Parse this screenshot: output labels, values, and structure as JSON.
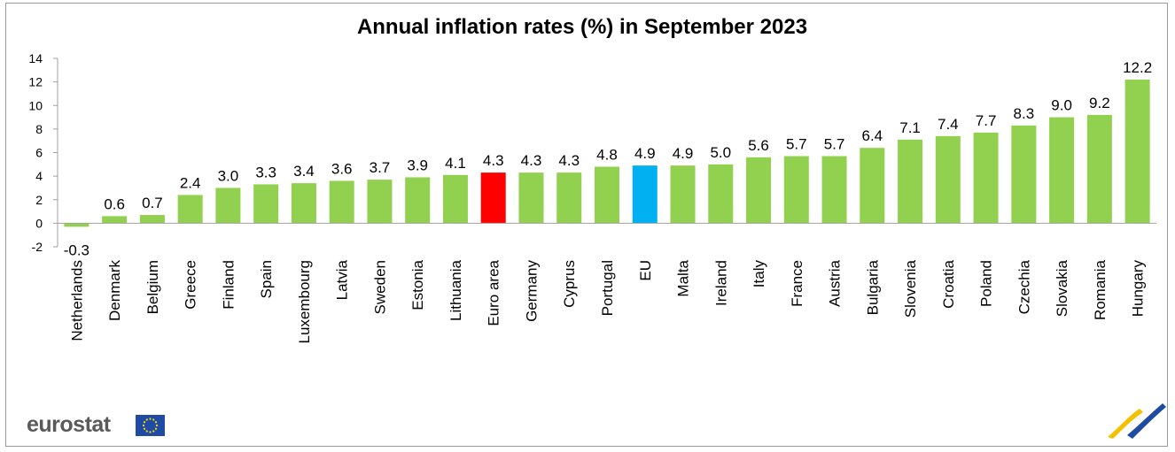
{
  "logo": {
    "text": "eurostat"
  },
  "colors": {
    "default_bar": "#92d050",
    "euro_area_bar": "#ff0000",
    "eu_bar": "#00b0f0",
    "axis": "#a0a0a0"
  },
  "chart_data": {
    "type": "bar",
    "title": "Annual inflation rates (%)  in September 2023",
    "xlabel": "",
    "ylabel": "",
    "ylim": [
      -2,
      14
    ],
    "yticks": [
      -2,
      0,
      2,
      4,
      6,
      8,
      10,
      12,
      14
    ],
    "grid": false,
    "legend": "none",
    "categories": [
      "Netherlands",
      "Denmark",
      "Belgium",
      "Greece",
      "Finland",
      "Spain",
      "Luxembourg",
      "Latvia",
      "Sweden",
      "Estonia",
      "Lithuania",
      "Euro area",
      "Germany",
      "Cyprus",
      "Portugal",
      "EU",
      "Malta",
      "Ireland",
      "Italy",
      "France",
      "Austria",
      "Bulgaria",
      "Slovenia",
      "Croatia",
      "Poland",
      "Czechia",
      "Slovakia",
      "Romania",
      "Hungary"
    ],
    "values": [
      -0.3,
      0.6,
      0.7,
      2.4,
      3.0,
      3.3,
      3.4,
      3.6,
      3.7,
      3.9,
      4.1,
      4.3,
      4.3,
      4.3,
      4.8,
      4.9,
      4.9,
      5.0,
      5.6,
      5.7,
      5.7,
      6.4,
      7.1,
      7.4,
      7.7,
      8.3,
      9.0,
      9.2,
      12.2
    ],
    "data_labels": [
      "-0.3",
      "0.6",
      "0.7",
      "2.4",
      "3.0",
      "3.3",
      "3.4",
      "3.6",
      "3.7",
      "3.9",
      "4.1",
      "4.3",
      "4.3",
      "4.3",
      "4.8",
      "4.9",
      "4.9",
      "5.0",
      "5.6",
      "5.7",
      "5.7",
      "6.4",
      "7.1",
      "7.4",
      "7.7",
      "8.3",
      "9.0",
      "9.2",
      "12.2"
    ],
    "highlight": {
      "Euro area": "euro_area_bar",
      "EU": "eu_bar"
    }
  }
}
